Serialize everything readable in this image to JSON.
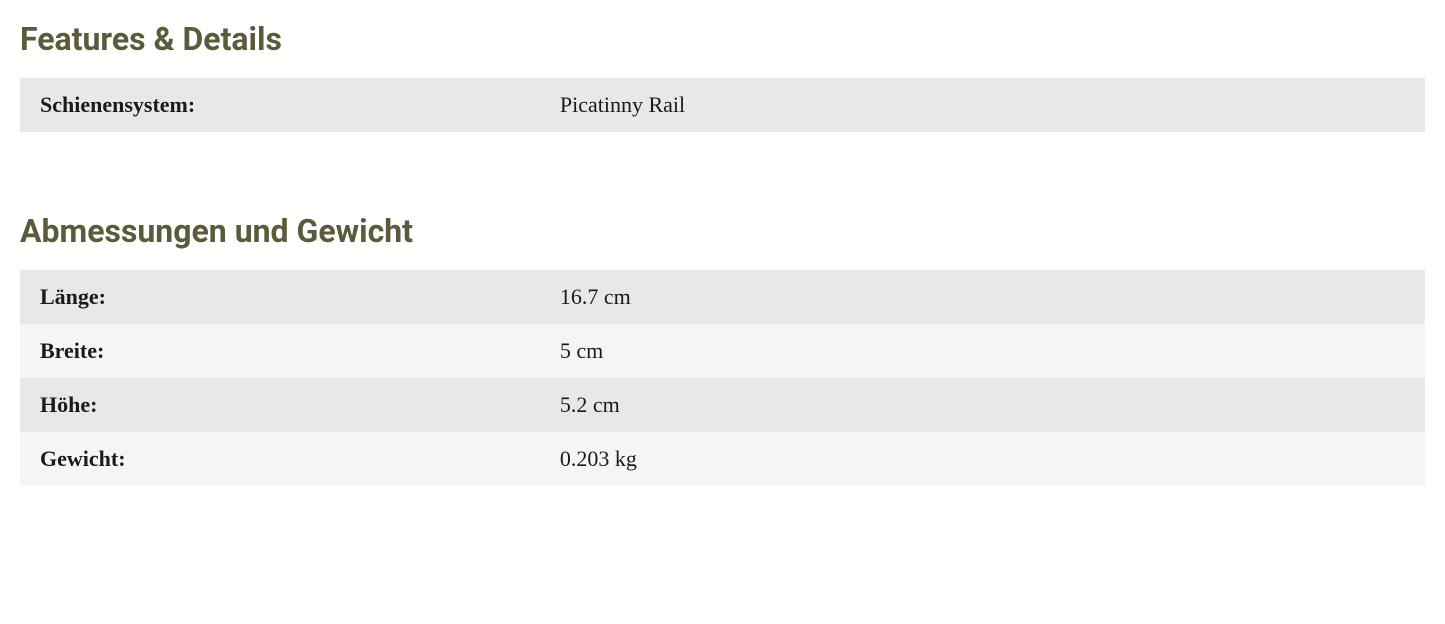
{
  "sections": [
    {
      "heading": "Features & Details",
      "rows": [
        {
          "label": "Schienensystem:",
          "value": "Picatinny Rail"
        }
      ]
    },
    {
      "heading": "Abmessungen und Gewicht",
      "rows": [
        {
          "label": "Länge:",
          "value": "16.7 cm"
        },
        {
          "label": "Breite:",
          "value": "5 cm"
        },
        {
          "label": "Höhe:",
          "value": "5.2 cm"
        },
        {
          "label": "Gewicht:",
          "value": "0.203 kg"
        }
      ]
    }
  ],
  "colors": {
    "heading_color": "#5b5a3a",
    "text_color": "#1a1a1a",
    "row_odd_bg": "#e9e8e6",
    "row_even_bg": "#f6f5f3",
    "background": "#ffffff"
  },
  "typography": {
    "heading_fontsize": 32,
    "heading_weight": 700,
    "body_fontsize": 22,
    "label_weight": 700,
    "value_weight": 400
  },
  "layout": {
    "label_width_pct": 37,
    "value_width_pct": 63,
    "row_padding_v": 14,
    "row_padding_h": 20,
    "section_gap": 80
  }
}
